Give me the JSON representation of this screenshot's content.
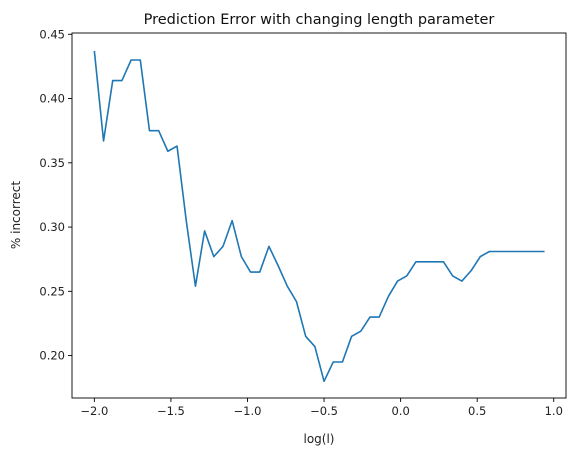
{
  "chart_data": {
    "type": "line",
    "title": "Prediction Error with changing length parameter",
    "xlabel": "log(l)",
    "ylabel": "% incorrect",
    "xlim": [
      -2.146,
      1.08
    ],
    "ylim": [
      0.167,
      0.451
    ],
    "xticks": [
      -2.0,
      -1.5,
      -1.0,
      -0.5,
      0.0,
      0.5,
      1.0
    ],
    "xtick_labels": [
      "−2.0",
      "−1.5",
      "−1.0",
      "−0.5",
      "0.0",
      "0.5",
      "1.0"
    ],
    "yticks": [
      0.2,
      0.25,
      0.3,
      0.35,
      0.4,
      0.45
    ],
    "ytick_labels": [
      "0.20",
      "0.25",
      "0.30",
      "0.35",
      "0.40",
      "0.45"
    ],
    "grid": false,
    "color": "#1f77b4",
    "series": [
      {
        "x": [
          -2.0,
          -1.94,
          -1.88,
          -1.82,
          -1.76,
          -1.7,
          -1.64,
          -1.58,
          -1.52,
          -1.46,
          -1.4,
          -1.34,
          -1.28,
          -1.22,
          -1.16,
          -1.1,
          -1.04,
          -0.98,
          -0.92,
          -0.86,
          -0.8,
          -0.74,
          -0.68,
          -0.62,
          -0.56,
          -0.5,
          -0.44,
          -0.38,
          -0.32,
          -0.26,
          -0.2,
          -0.14,
          -0.08,
          -0.02,
          0.04,
          0.1,
          0.16,
          0.22,
          0.28,
          0.34,
          0.4,
          0.46,
          0.52,
          0.58,
          0.64,
          0.7,
          0.76,
          0.82,
          0.88,
          0.94
        ],
        "y": [
          0.437,
          0.367,
          0.414,
          0.414,
          0.43,
          0.43,
          0.375,
          0.375,
          0.359,
          0.363,
          0.305,
          0.254,
          0.297,
          0.277,
          0.285,
          0.305,
          0.277,
          0.265,
          0.265,
          0.285,
          0.27,
          0.254,
          0.242,
          0.215,
          0.207,
          0.18,
          0.195,
          0.195,
          0.215,
          0.219,
          0.23,
          0.23,
          0.246,
          0.258,
          0.262,
          0.273,
          0.273,
          0.273,
          0.273,
          0.262,
          0.258,
          0.266,
          0.277,
          0.281,
          0.281,
          0.281,
          0.281,
          0.281,
          0.281,
          0.281
        ]
      }
    ]
  }
}
